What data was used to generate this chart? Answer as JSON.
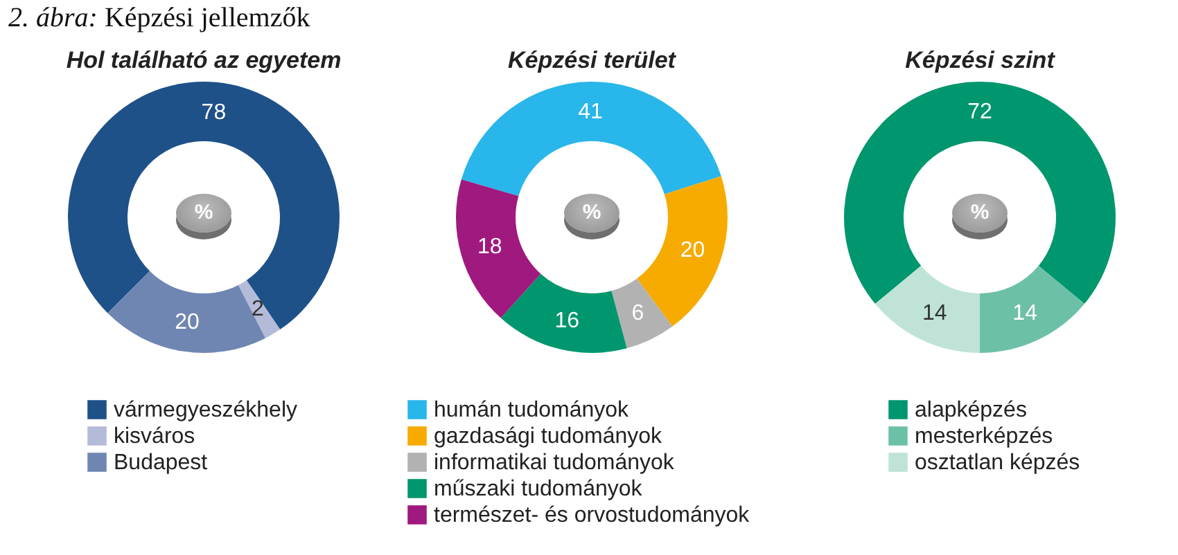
{
  "chart_data": [
    {
      "type": "donut",
      "title": "Hol található az egyetem",
      "categories": [
        "vármegyeszékhely",
        "kisváros",
        "Budapest"
      ],
      "values": [
        78,
        2,
        20
      ],
      "colors": [
        "#1f5189",
        "#b3bbd8",
        "#7086b2"
      ],
      "data_labels": true,
      "legend": "bottom",
      "annotations": [
        "2. ábra: Képzési jellemzők",
        "%"
      ]
    },
    {
      "type": "donut",
      "title": "Képzési terület",
      "categories": [
        "humán tudományok",
        "gazdasági tudományok",
        "informatikai tudományok",
        "műszaki tudományok",
        "természet- és orvostudományok"
      ],
      "values": [
        41,
        20,
        6,
        16,
        18
      ],
      "colors": [
        "#29b6ea",
        "#f7ab00",
        "#b2b2b2",
        "#00966e",
        "#a0197f"
      ],
      "data_labels": true,
      "legend": "bottom",
      "annotations": [
        "%"
      ]
    },
    {
      "type": "donut",
      "title": "Képzési szint",
      "categories": [
        "alapképzés",
        "mesterképzés",
        "osztatlan képzés"
      ],
      "values": [
        72,
        14,
        14
      ],
      "colors": [
        "#00966e",
        "#6cc0a8",
        "#bfe3d7"
      ],
      "data_labels": true,
      "legend": "bottom",
      "annotations": [
        "%"
      ]
    }
  ]
}
